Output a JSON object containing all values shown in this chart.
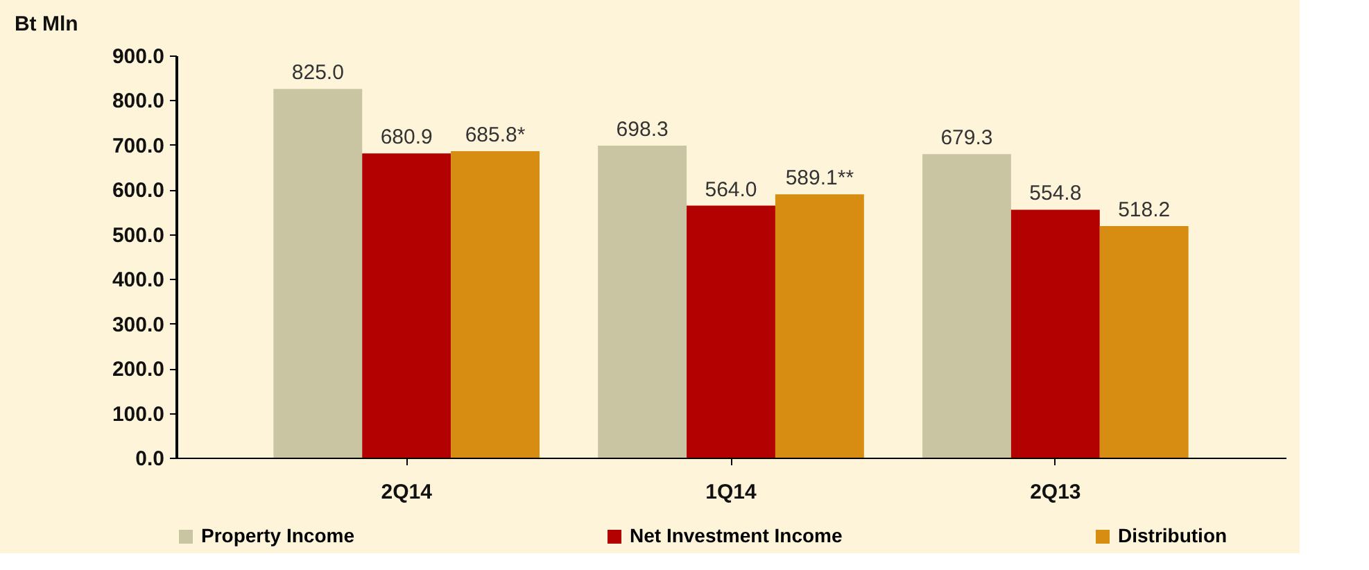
{
  "chart_data": {
    "type": "bar",
    "ylabel": "Bt Mln",
    "categories": [
      "2Q14",
      "1Q14",
      "2Q13"
    ],
    "series": [
      {
        "name": "Property Income",
        "color": "#c9c4a2",
        "values": [
          825.0,
          698.3,
          679.3
        ],
        "value_labels": [
          "825.0",
          "698.3",
          "679.3"
        ]
      },
      {
        "name": "Net Investment Income",
        "color": "#b30000",
        "values": [
          680.9,
          564.0,
          554.8
        ],
        "value_labels": [
          "680.9",
          "564.0",
          "554.8"
        ]
      },
      {
        "name": "Distribution",
        "color": "#d78c12",
        "values": [
          685.8,
          589.1,
          518.2
        ],
        "value_labels": [
          "685.8*",
          "589.1**",
          "518.2"
        ]
      }
    ],
    "ylim": [
      0,
      900
    ],
    "yticks": [
      {
        "value": 0,
        "label": "0.0"
      },
      {
        "value": 100,
        "label": "100.0"
      },
      {
        "value": 200,
        "label": "200.0"
      },
      {
        "value": 300,
        "label": "300.0"
      },
      {
        "value": 400,
        "label": "400.0"
      },
      {
        "value": 500,
        "label": "500.0"
      },
      {
        "value": 600,
        "label": "600.0"
      },
      {
        "value": 700,
        "label": "700.0"
      },
      {
        "value": 800,
        "label": "800.0"
      },
      {
        "value": 900,
        "label": "900.0"
      }
    ],
    "grid": false,
    "legend": "bottom"
  }
}
